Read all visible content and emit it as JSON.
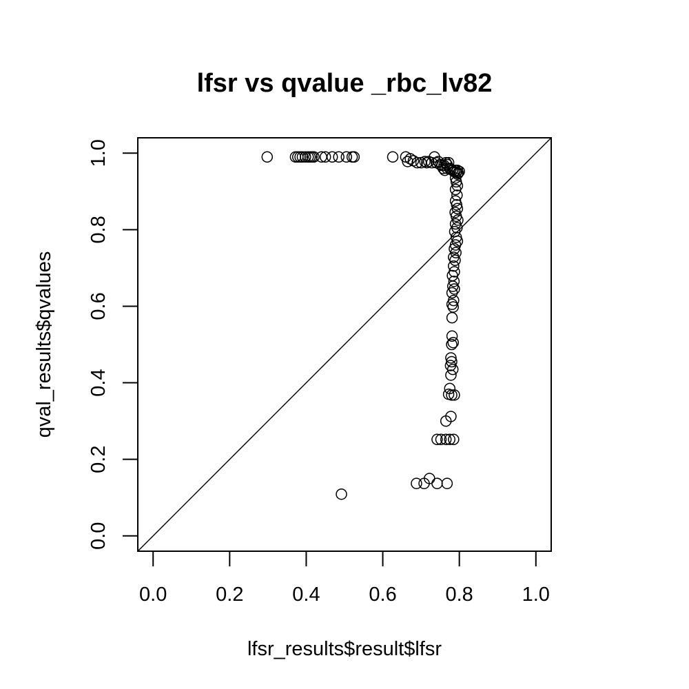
{
  "chart_data": {
    "type": "scatter",
    "title": "lfsr vs qvalue  _rbc_lv82",
    "xlabel": "lfsr_results$result$lfsr",
    "ylabel": "qval_results$qvalues",
    "xlim": [
      -0.04,
      1.04
    ],
    "ylim": [
      -0.04,
      1.04
    ],
    "xticks": [
      "0.0",
      "0.2",
      "0.4",
      "0.6",
      "0.8",
      "1.0"
    ],
    "yticks": [
      "0.0",
      "0.2",
      "0.4",
      "0.6",
      "0.8",
      "1.0"
    ],
    "reference_line": "y = x",
    "grid": false,
    "legend": "none",
    "points": [
      [
        0.298,
        0.99
      ],
      [
        0.372,
        0.99
      ],
      [
        0.378,
        0.99
      ],
      [
        0.384,
        0.99
      ],
      [
        0.39,
        0.99
      ],
      [
        0.398,
        0.99
      ],
      [
        0.405,
        0.99
      ],
      [
        0.41,
        0.99
      ],
      [
        0.415,
        0.99
      ],
      [
        0.42,
        0.99
      ],
      [
        0.44,
        0.99
      ],
      [
        0.45,
        0.99
      ],
      [
        0.468,
        0.99
      ],
      [
        0.485,
        0.99
      ],
      [
        0.505,
        0.99
      ],
      [
        0.52,
        0.99
      ],
      [
        0.525,
        0.99
      ],
      [
        0.626,
        0.99
      ],
      [
        0.66,
        0.99
      ],
      [
        0.735,
        0.99
      ],
      [
        0.665,
        0.978
      ],
      [
        0.672,
        0.985
      ],
      [
        0.68,
        0.98
      ],
      [
        0.69,
        0.975
      ],
      [
        0.7,
        0.975
      ],
      [
        0.71,
        0.978
      ],
      [
        0.715,
        0.975
      ],
      [
        0.72,
        0.978
      ],
      [
        0.728,
        0.975
      ],
      [
        0.74,
        0.975
      ],
      [
        0.745,
        0.978
      ],
      [
        0.75,
        0.97
      ],
      [
        0.755,
        0.968
      ],
      [
        0.76,
        0.968
      ],
      [
        0.765,
        0.975
      ],
      [
        0.768,
        0.97
      ],
      [
        0.772,
        0.975
      ],
      [
        0.758,
        0.96
      ],
      [
        0.762,
        0.955
      ],
      [
        0.768,
        0.96
      ],
      [
        0.775,
        0.96
      ],
      [
        0.778,
        0.958
      ],
      [
        0.782,
        0.955
      ],
      [
        0.786,
        0.952
      ],
      [
        0.79,
        0.955
      ],
      [
        0.792,
        0.95
      ],
      [
        0.795,
        0.955
      ],
      [
        0.797,
        0.948
      ],
      [
        0.8,
        0.952
      ],
      [
        0.795,
        0.945
      ],
      [
        0.79,
        0.935
      ],
      [
        0.792,
        0.925
      ],
      [
        0.795,
        0.915
      ],
      [
        0.79,
        0.905
      ],
      [
        0.794,
        0.89
      ],
      [
        0.79,
        0.875
      ],
      [
        0.793,
        0.865
      ],
      [
        0.795,
        0.855
      ],
      [
        0.789,
        0.845
      ],
      [
        0.792,
        0.835
      ],
      [
        0.796,
        0.825
      ],
      [
        0.79,
        0.815
      ],
      [
        0.794,
        0.805
      ],
      [
        0.788,
        0.795
      ],
      [
        0.792,
        0.78
      ],
      [
        0.795,
        0.77
      ],
      [
        0.79,
        0.76
      ],
      [
        0.787,
        0.75
      ],
      [
        0.791,
        0.74
      ],
      [
        0.785,
        0.728
      ],
      [
        0.789,
        0.72
      ],
      [
        0.785,
        0.705
      ],
      [
        0.787,
        0.69
      ],
      [
        0.782,
        0.68
      ],
      [
        0.786,
        0.665
      ],
      [
        0.783,
        0.652
      ],
      [
        0.787,
        0.645
      ],
      [
        0.781,
        0.635
      ],
      [
        0.785,
        0.615
      ],
      [
        0.781,
        0.605
      ],
      [
        0.784,
        0.598
      ],
      [
        0.781,
        0.57
      ],
      [
        0.781,
        0.522
      ],
      [
        0.784,
        0.505
      ],
      [
        0.78,
        0.5
      ],
      [
        0.778,
        0.465
      ],
      [
        0.78,
        0.455
      ],
      [
        0.777,
        0.445
      ],
      [
        0.783,
        0.435
      ],
      [
        0.778,
        0.42
      ],
      [
        0.775,
        0.385
      ],
      [
        0.772,
        0.37
      ],
      [
        0.78,
        0.368
      ],
      [
        0.787,
        0.368
      ],
      [
        0.778,
        0.312
      ],
      [
        0.765,
        0.3
      ],
      [
        0.742,
        0.252
      ],
      [
        0.752,
        0.252
      ],
      [
        0.765,
        0.252
      ],
      [
        0.775,
        0.252
      ],
      [
        0.785,
        0.252
      ],
      [
        0.688,
        0.137
      ],
      [
        0.708,
        0.137
      ],
      [
        0.722,
        0.15
      ],
      [
        0.742,
        0.137
      ],
      [
        0.768,
        0.137
      ],
      [
        0.492,
        0.109
      ]
    ]
  }
}
